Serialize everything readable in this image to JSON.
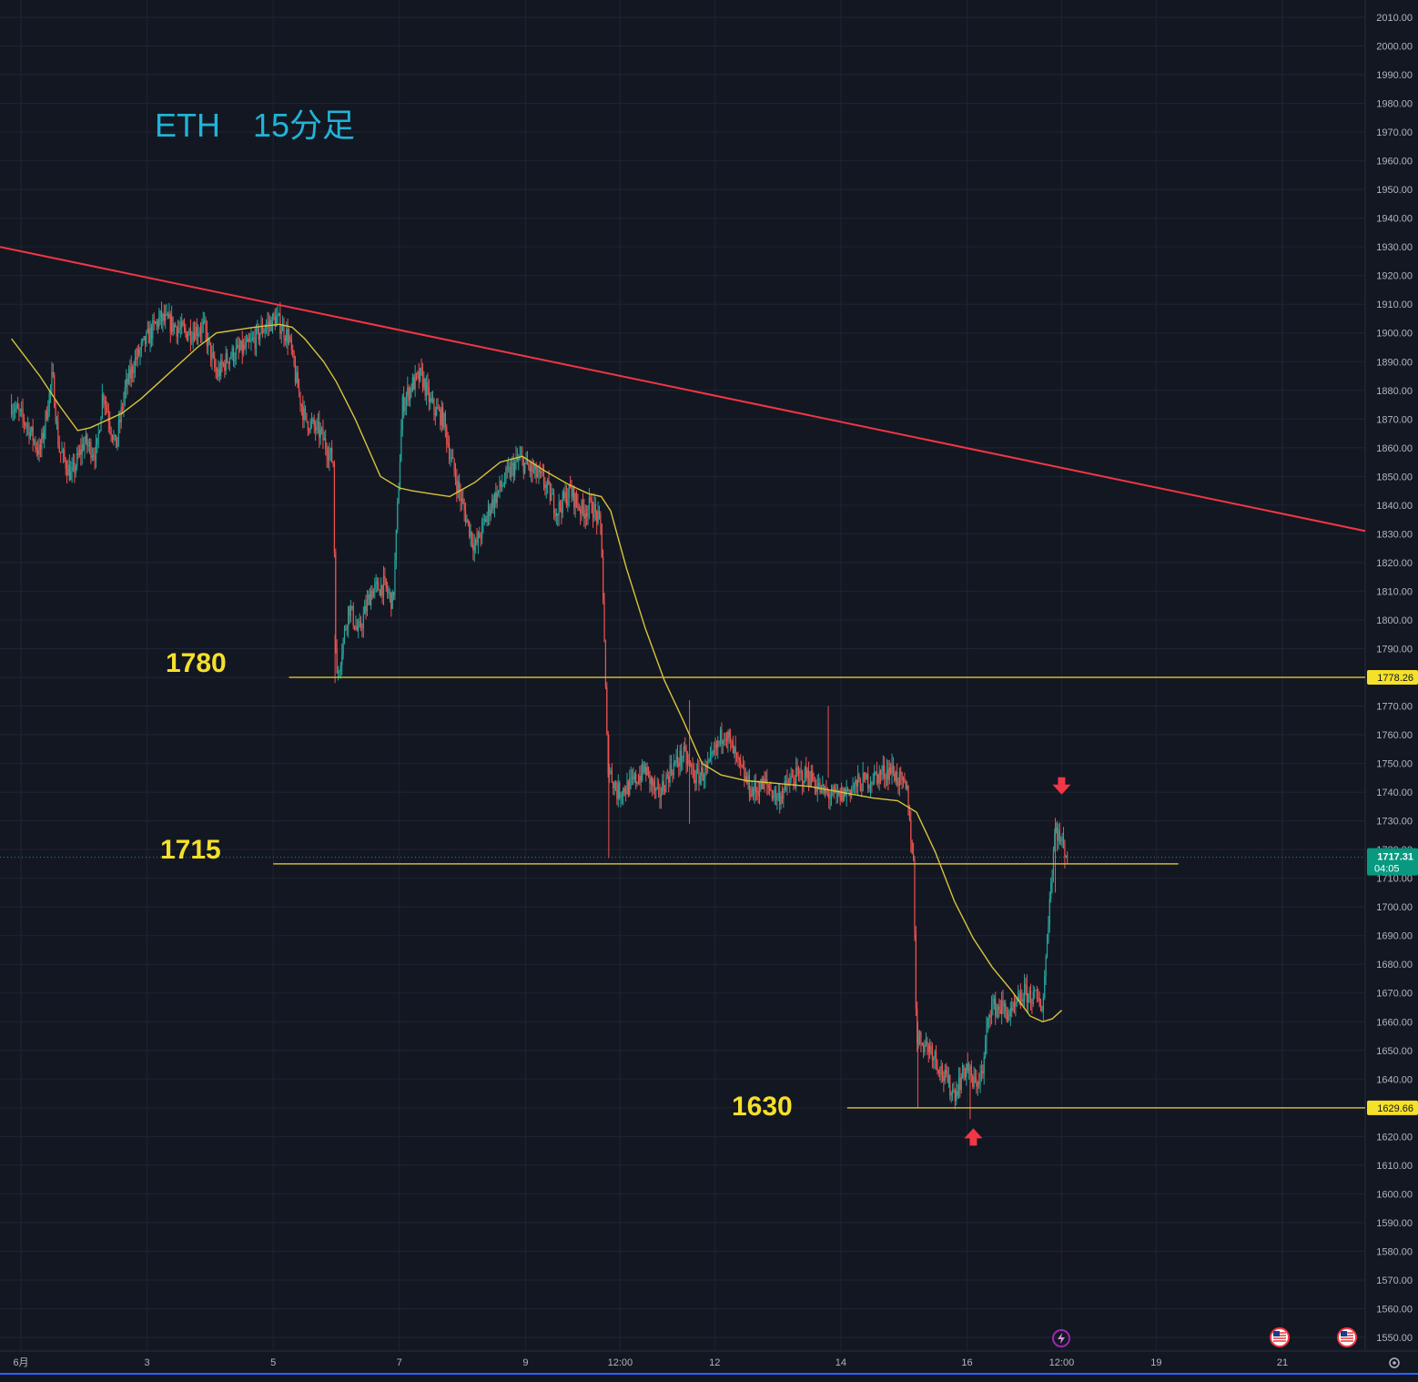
{
  "chart_data": {
    "type": "candlestick",
    "title": "ETH　15分足",
    "colors": {
      "background": "#131722",
      "grid": "#1f2433",
      "bull": "#26a69a",
      "bear": "#ef5350",
      "moving_average": "#d9c43a",
      "trendline": "#f23645",
      "level_line": "#c9b936",
      "level_label": "#f5e02a",
      "title": "#22b3d6",
      "axis_text": "#b2b5be",
      "current_price_badge": "#089981",
      "level_badge": "#f5e02a",
      "arrow": "#f23645"
    },
    "y_axis": {
      "min": 1545,
      "max": 2015,
      "ticks": [
        1550,
        1560,
        1570,
        1580,
        1590,
        1600,
        1610,
        1620,
        1630,
        1640,
        1650,
        1660,
        1670,
        1680,
        1690,
        1700,
        1710,
        1720,
        1730,
        1740,
        1750,
        1760,
        1770,
        1780,
        1790,
        1800,
        1810,
        1820,
        1830,
        1840,
        1850,
        1860,
        1870,
        1880,
        1890,
        1900,
        1910,
        1920,
        1930,
        1940,
        1950,
        1960,
        1970,
        1980,
        1990,
        2000,
        2010
      ],
      "tick_labels": [
        "1550.00",
        "1560.00",
        "1570.00",
        "1580.00",
        "1590.00",
        "1600.00",
        "1610.00",
        "1620.00",
        "1630.00",
        "1640.00",
        "1650.00",
        "1660.00",
        "1670.00",
        "1680.00",
        "1690.00",
        "1700.00",
        "1710.00",
        "1720.00",
        "1730.00",
        "1740.00",
        "1750.00",
        "1760.00",
        "1770.00",
        "1780.00",
        "1790.00",
        "1800.00",
        "1810.00",
        "1820.00",
        "1830.00",
        "1840.00",
        "1850.00",
        "1860.00",
        "1870.00",
        "1880.00",
        "1890.00",
        "1900.00",
        "1910.00",
        "1920.00",
        "1930.00",
        "1940.00",
        "1950.00",
        "1960.00",
        "1970.00",
        "1980.00",
        "1990.00",
        "2000.00",
        "2010.00"
      ]
    },
    "x_axis": {
      "min": 0.85,
      "max": 22.5,
      "ticks": [
        {
          "x": 1.0,
          "label": "6月"
        },
        {
          "x": 3.0,
          "label": "3"
        },
        {
          "x": 5.0,
          "label": "5"
        },
        {
          "x": 7.0,
          "label": "7"
        },
        {
          "x": 9.0,
          "label": "9"
        },
        {
          "x": 10.5,
          "label": "12:00"
        },
        {
          "x": 12.0,
          "label": "12"
        },
        {
          "x": 14.0,
          "label": "14"
        },
        {
          "x": 16.0,
          "label": "16"
        },
        {
          "x": 17.5,
          "label": "12:00"
        },
        {
          "x": 19.0,
          "label": "19"
        },
        {
          "x": 21.0,
          "label": "21"
        }
      ]
    },
    "price_path": [
      [
        0.85,
        1875
      ],
      [
        1.1,
        1868
      ],
      [
        1.3,
        1858
      ],
      [
        1.5,
        1885
      ],
      [
        1.6,
        1860
      ],
      [
        1.8,
        1850
      ],
      [
        2.0,
        1862
      ],
      [
        2.2,
        1858
      ],
      [
        2.3,
        1880
      ],
      [
        2.5,
        1860
      ],
      [
        2.65,
        1880
      ],
      [
        2.8,
        1890
      ],
      [
        3.0,
        1898
      ],
      [
        3.2,
        1905
      ],
      [
        3.4,
        1903
      ],
      [
        3.6,
        1900
      ],
      [
        3.9,
        1902
      ],
      [
        4.1,
        1885
      ],
      [
        4.3,
        1892
      ],
      [
        4.6,
        1895
      ],
      [
        4.85,
        1902
      ],
      [
        5.05,
        1905
      ],
      [
        5.25,
        1898
      ],
      [
        5.35,
        1885
      ],
      [
        5.5,
        1870
      ],
      [
        5.75,
        1865
      ],
      [
        5.95,
        1855
      ],
      [
        6.0,
        1778
      ],
      [
        6.2,
        1805
      ],
      [
        6.35,
        1795
      ],
      [
        6.55,
        1810
      ],
      [
        6.75,
        1812
      ],
      [
        6.9,
        1806
      ],
      [
        7.05,
        1875
      ],
      [
        7.2,
        1882
      ],
      [
        7.35,
        1885
      ],
      [
        7.5,
        1875
      ],
      [
        7.7,
        1870
      ],
      [
        7.8,
        1858
      ],
      [
        8.0,
        1840
      ],
      [
        8.2,
        1825
      ],
      [
        8.45,
        1840
      ],
      [
        8.7,
        1850
      ],
      [
        8.9,
        1856
      ],
      [
        9.1,
        1852
      ],
      [
        9.3,
        1848
      ],
      [
        9.5,
        1838
      ],
      [
        9.7,
        1845
      ],
      [
        9.9,
        1838
      ],
      [
        10.05,
        1840
      ],
      [
        10.2,
        1832
      ],
      [
        10.3,
        1750
      ],
      [
        10.45,
        1740
      ],
      [
        10.65,
        1742
      ],
      [
        10.9,
        1748
      ],
      [
        11.1,
        1738
      ],
      [
        11.3,
        1748
      ],
      [
        11.5,
        1753
      ],
      [
        11.7,
        1745
      ],
      [
        11.9,
        1748
      ],
      [
        12.15,
        1762
      ],
      [
        12.4,
        1748
      ],
      [
        12.6,
        1740
      ],
      [
        12.8,
        1743
      ],
      [
        13.0,
        1738
      ],
      [
        13.25,
        1745
      ],
      [
        13.5,
        1746
      ],
      [
        13.7,
        1740
      ],
      [
        13.95,
        1738
      ],
      [
        14.2,
        1742
      ],
      [
        14.5,
        1745
      ],
      [
        14.8,
        1748
      ],
      [
        15.05,
        1740
      ],
      [
        15.15,
        1715
      ],
      [
        15.2,
        1655
      ],
      [
        15.45,
        1650
      ],
      [
        15.65,
        1640
      ],
      [
        15.8,
        1635
      ],
      [
        16.0,
        1645
      ],
      [
        16.1,
        1638
      ],
      [
        16.25,
        1642
      ],
      [
        16.35,
        1665
      ],
      [
        16.55,
        1665
      ],
      [
        16.7,
        1662
      ],
      [
        16.9,
        1670
      ],
      [
        17.1,
        1668
      ],
      [
        17.2,
        1665
      ],
      [
        17.3,
        1700
      ],
      [
        17.4,
        1728
      ],
      [
        17.5,
        1722
      ],
      [
        17.6,
        1718
      ]
    ],
    "moving_average": [
      [
        0.85,
        1898
      ],
      [
        1.3,
        1885
      ],
      [
        1.6,
        1875
      ],
      [
        1.9,
        1866
      ],
      [
        2.1,
        1867
      ],
      [
        2.6,
        1872
      ],
      [
        2.9,
        1877
      ],
      [
        3.2,
        1883
      ],
      [
        3.5,
        1889
      ],
      [
        3.8,
        1895
      ],
      [
        4.1,
        1900
      ],
      [
        4.4,
        1901
      ],
      [
        4.7,
        1902
      ],
      [
        5.1,
        1903
      ],
      [
        5.3,
        1902
      ],
      [
        5.5,
        1898
      ],
      [
        5.8,
        1890
      ],
      [
        6.0,
        1883
      ],
      [
        6.3,
        1870
      ],
      [
        6.7,
        1850
      ],
      [
        7.0,
        1846
      ],
      [
        7.2,
        1845
      ],
      [
        7.5,
        1844
      ],
      [
        7.8,
        1843
      ],
      [
        8.2,
        1848
      ],
      [
        8.6,
        1855
      ],
      [
        8.95,
        1857
      ],
      [
        9.3,
        1852
      ],
      [
        9.7,
        1847
      ],
      [
        10.0,
        1844
      ],
      [
        10.2,
        1843
      ],
      [
        10.35,
        1838
      ],
      [
        10.6,
        1818
      ],
      [
        10.9,
        1797
      ],
      [
        11.2,
        1779
      ],
      [
        11.5,
        1765
      ],
      [
        11.8,
        1750
      ],
      [
        12.1,
        1746
      ],
      [
        12.5,
        1744
      ],
      [
        13.0,
        1743
      ],
      [
        13.5,
        1742
      ],
      [
        14.0,
        1740
      ],
      [
        14.5,
        1738
      ],
      [
        14.9,
        1737
      ],
      [
        15.2,
        1733
      ],
      [
        15.5,
        1719
      ],
      [
        15.8,
        1702
      ],
      [
        16.1,
        1689
      ],
      [
        16.4,
        1679
      ],
      [
        16.7,
        1671
      ],
      [
        17.0,
        1662
      ],
      [
        17.2,
        1660
      ],
      [
        17.35,
        1661
      ],
      [
        17.5,
        1664
      ]
    ],
    "trendline": {
      "from": [
        0.85,
        1930
      ],
      "to": [
        22.5,
        1831
      ]
    },
    "levels": [
      {
        "value": 1780,
        "label": "1780",
        "badge": "1778.26",
        "x_from": 5.25,
        "x_to": 22.5
      },
      {
        "value": 1715,
        "label": "1715",
        "x_from": 5.0,
        "x_to": 19.35
      },
      {
        "value": 1630,
        "label": "1630",
        "badge": "1629.66",
        "x_from": 14.1,
        "x_to": 22.5
      }
    ],
    "current_price": {
      "value": 1717.31,
      "label": "1717.31",
      "countdown": "04:05"
    },
    "arrows": [
      {
        "direction": "down",
        "x": 17.5,
        "y": 1742
      },
      {
        "direction": "up",
        "x": 16.1,
        "y": 1620
      }
    ]
  }
}
